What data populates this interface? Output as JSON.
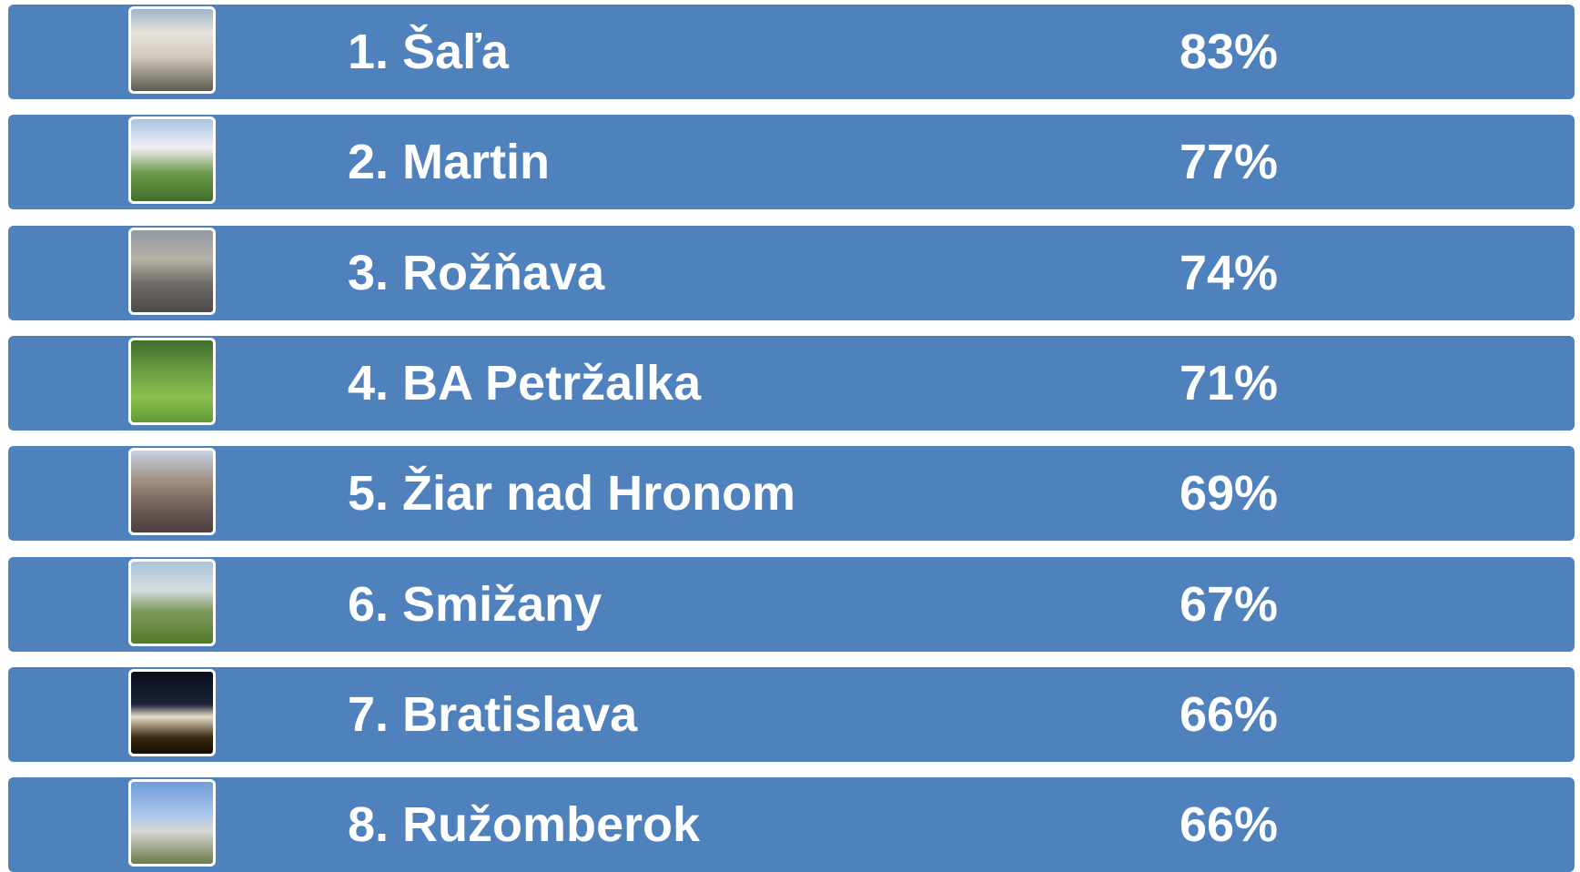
{
  "rows": [
    {
      "name": "1. Šaľa",
      "percent": "83%"
    },
    {
      "name": "2. Martin",
      "percent": "77%"
    },
    {
      "name": "3. Rožňava",
      "percent": "74%"
    },
    {
      "name": "4. BA Petržalka",
      "percent": "71%"
    },
    {
      "name": "5. Žiar nad Hronom",
      "percent": "69%"
    },
    {
      "name": "6. Smižany",
      "percent": "67%"
    },
    {
      "name": "7. Bratislava",
      "percent": "66%"
    },
    {
      "name": "8. Ružomberok",
      "percent": "66%"
    }
  ]
}
